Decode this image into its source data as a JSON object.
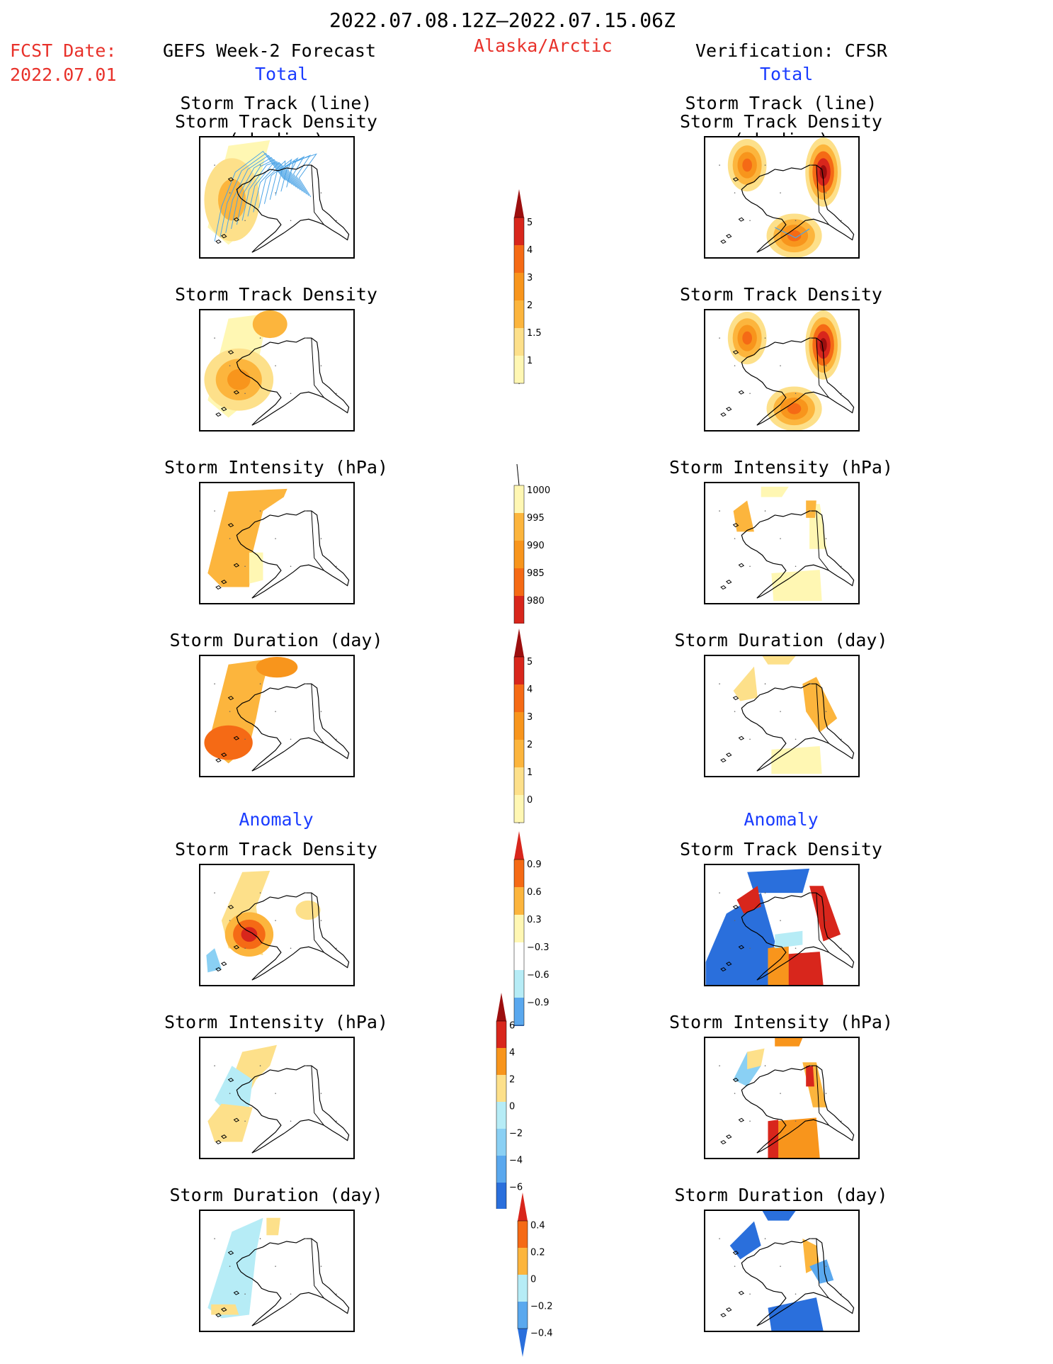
{
  "header": {
    "date_range": "2022.07.08.12Z–2022.07.15.06Z",
    "fcst_date_label": "FCST Date:",
    "fcst_date_value": "2022.07.01",
    "region": "Alaska/Arctic",
    "left_title": "GEFS Week-2 Forecast",
    "right_title": "Verification: CFSR",
    "left_subtitle": "Total",
    "right_subtitle": "Total"
  },
  "sections": {
    "anomaly_left": "Anomaly",
    "anomaly_right": "Anomaly"
  },
  "panels": {
    "track_line": "Storm Track (line)",
    "track_shading": "Storm Track Density (shading)",
    "density": "Storm Track Density",
    "intensity": "Storm Intensity (hPa)",
    "duration": "Storm Duration (day)"
  },
  "colorbars": {
    "density_total": [
      "5",
      "4",
      "3",
      "2",
      "1.5",
      "1"
    ],
    "intensity_total": [
      "1000",
      "995",
      "990",
      "985",
      "980"
    ],
    "duration_total": [
      "5",
      "4",
      "3",
      "2",
      "1",
      "0"
    ],
    "density_anom": [
      "0.9",
      "0.6",
      "0.3",
      "−0.3",
      "−0.6",
      "−0.9"
    ],
    "intensity_anom": [
      "6",
      "4",
      "2",
      "0",
      "−2",
      "−4",
      "−6"
    ],
    "duration_anom": [
      "0.4",
      "0.2",
      "0",
      "−0.2",
      "−0.4"
    ]
  },
  "colors": {
    "accent_red": "#e8312a",
    "accent_blue": "#1a3cff",
    "warm": [
      "#fff7b3",
      "#fde08a",
      "#fcb53d",
      "#f8951c",
      "#f56a15",
      "#d8261c",
      "#9c0e0e"
    ],
    "cool": [
      "#b6ecf6",
      "#8ad0f4",
      "#5aa8ee",
      "#2a6fdc",
      "#1248b8"
    ],
    "track_line": "#4aa3e6"
  }
}
